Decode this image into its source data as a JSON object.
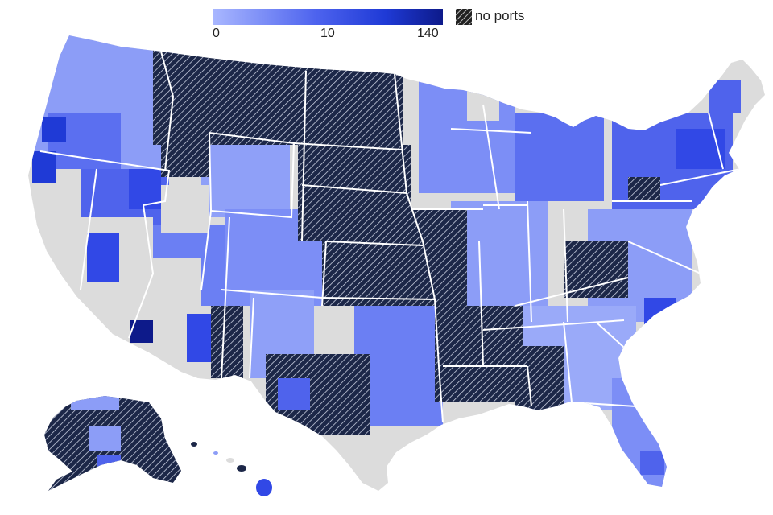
{
  "legend": {
    "scale_min": "0",
    "scale_mid": "10",
    "scale_max": "140",
    "no_data_label": "no ports"
  },
  "colors": {
    "ramp_low": "#a9b7ff",
    "ramp_mid": "#4d63ee",
    "ramp_high": "#1f3ad6",
    "ramp_max": "#0d1a8a",
    "no_ports_fill": "#1c2748",
    "no_ports_hatch": "#c9cfe0",
    "no_data": "#dcdcdc",
    "state_border": "#ffffff"
  },
  "map": {
    "regions": [
      "contiguous-us",
      "alaska",
      "hawaii"
    ]
  }
}
